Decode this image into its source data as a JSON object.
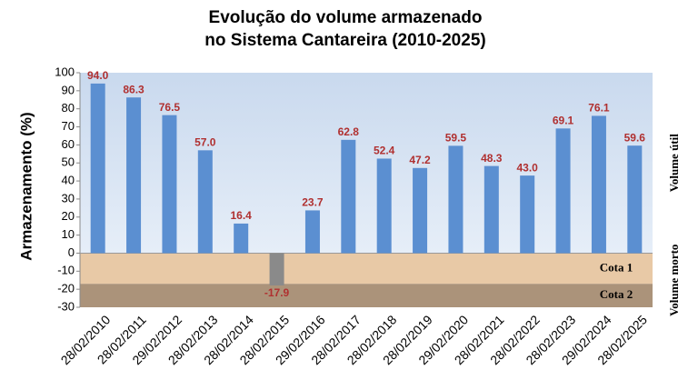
{
  "chart_data": {
    "type": "bar",
    "title": [
      "Evolução do volume armazenado",
      "no Sistema Cantareira (2010-2025)"
    ],
    "y_label": "Armazenamento (%)",
    "categories": [
      "28/02/2010",
      "28/02/2011",
      "29/02/2012",
      "28/02/2013",
      "28/02/2014",
      "28/02/2015",
      "29/02/2016",
      "28/02/2017",
      "28/02/2018",
      "28/02/2019",
      "29/02/2020",
      "28/02/2021",
      "28/02/2022",
      "28/02/2023",
      "29/02/2024",
      "28/02/2025"
    ],
    "values": [
      94.0,
      86.3,
      76.5,
      57.0,
      16.4,
      -17.9,
      23.7,
      62.8,
      52.4,
      47.2,
      59.5,
      48.3,
      43.0,
      69.1,
      76.1,
      59.6
    ],
    "value_labels": [
      "94.0",
      "86.3",
      "76.5",
      "57.0",
      "16.4",
      "-17.9",
      "23.7",
      "62.8",
      "52.4",
      "47.2",
      "59.5",
      "48.3",
      "43.0",
      "69.1",
      "76.1",
      "59.6"
    ],
    "colors": [
      "#5b8fd1",
      "#5b8fd1",
      "#5b8fd1",
      "#5b8fd1",
      "#5b8fd1",
      "#8a8a8a",
      "#5b8fd1",
      "#5b8fd1",
      "#5b8fd1",
      "#5b8fd1",
      "#5b8fd1",
      "#5b8fd1",
      "#5b8fd1",
      "#5b8fd1",
      "#5b8fd1",
      "#5b8fd1"
    ],
    "label_color": "#b03030",
    "ylim": [
      -30,
      100
    ],
    "yticks": [
      -30,
      -20,
      -10,
      0,
      10,
      20,
      30,
      40,
      50,
      60,
      70,
      80,
      90,
      100
    ],
    "bands": [
      {
        "label": "Cota 1",
        "from": 0,
        "to": -17,
        "color": "#e8c9a6"
      },
      {
        "label": "Cota 2",
        "from": -17,
        "to": -30,
        "color": "#ab937a"
      }
    ],
    "zones": [
      {
        "label": "Volume útil",
        "from": 100,
        "to": 0
      },
      {
        "label": "Volume morto",
        "from": 0,
        "to": -30
      }
    ]
  }
}
